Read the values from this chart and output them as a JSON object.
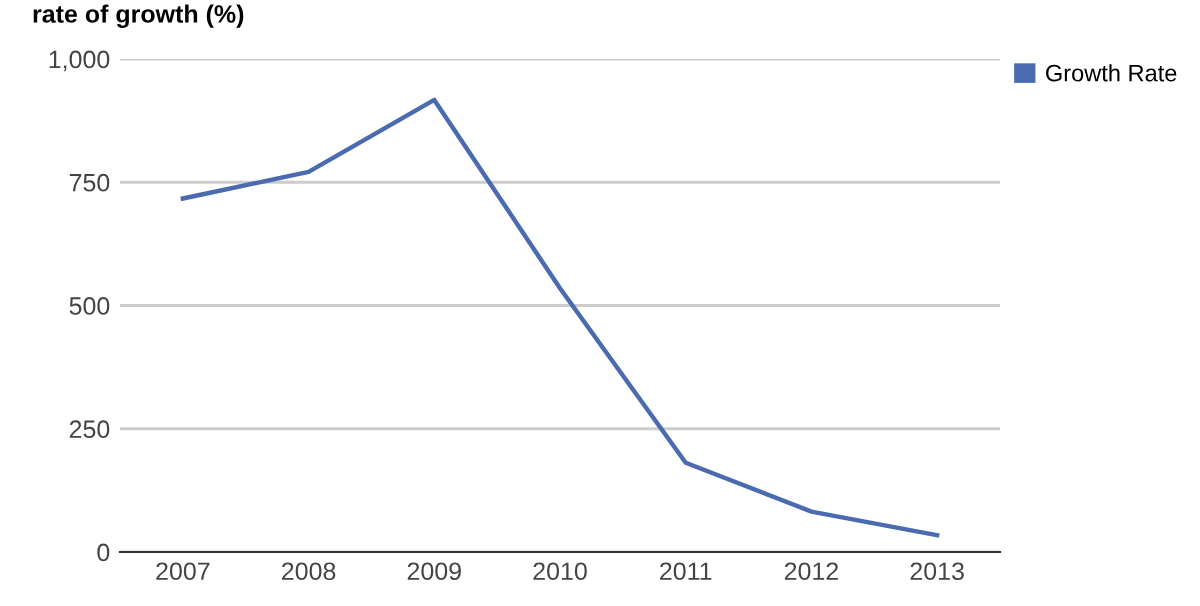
{
  "chart_data": {
    "type": "line",
    "title": "rate of growth (%)",
    "categories": [
      "2007",
      "2008",
      "2009",
      "2010",
      "2011",
      "2012",
      "2013"
    ],
    "series": [
      {
        "name": "Growth Rate",
        "color": "#4a6bb0",
        "values": [
          717,
          771,
          917,
          535,
          181,
          82,
          34
        ]
      }
    ],
    "ylim": [
      0,
      1000
    ],
    "yticks": [
      0,
      250,
      500,
      750,
      {
        "value": 1000,
        "label": "1,000"
      }
    ],
    "grid": "y",
    "legend": "top right",
    "marker": "none",
    "line_style": "solid"
  }
}
